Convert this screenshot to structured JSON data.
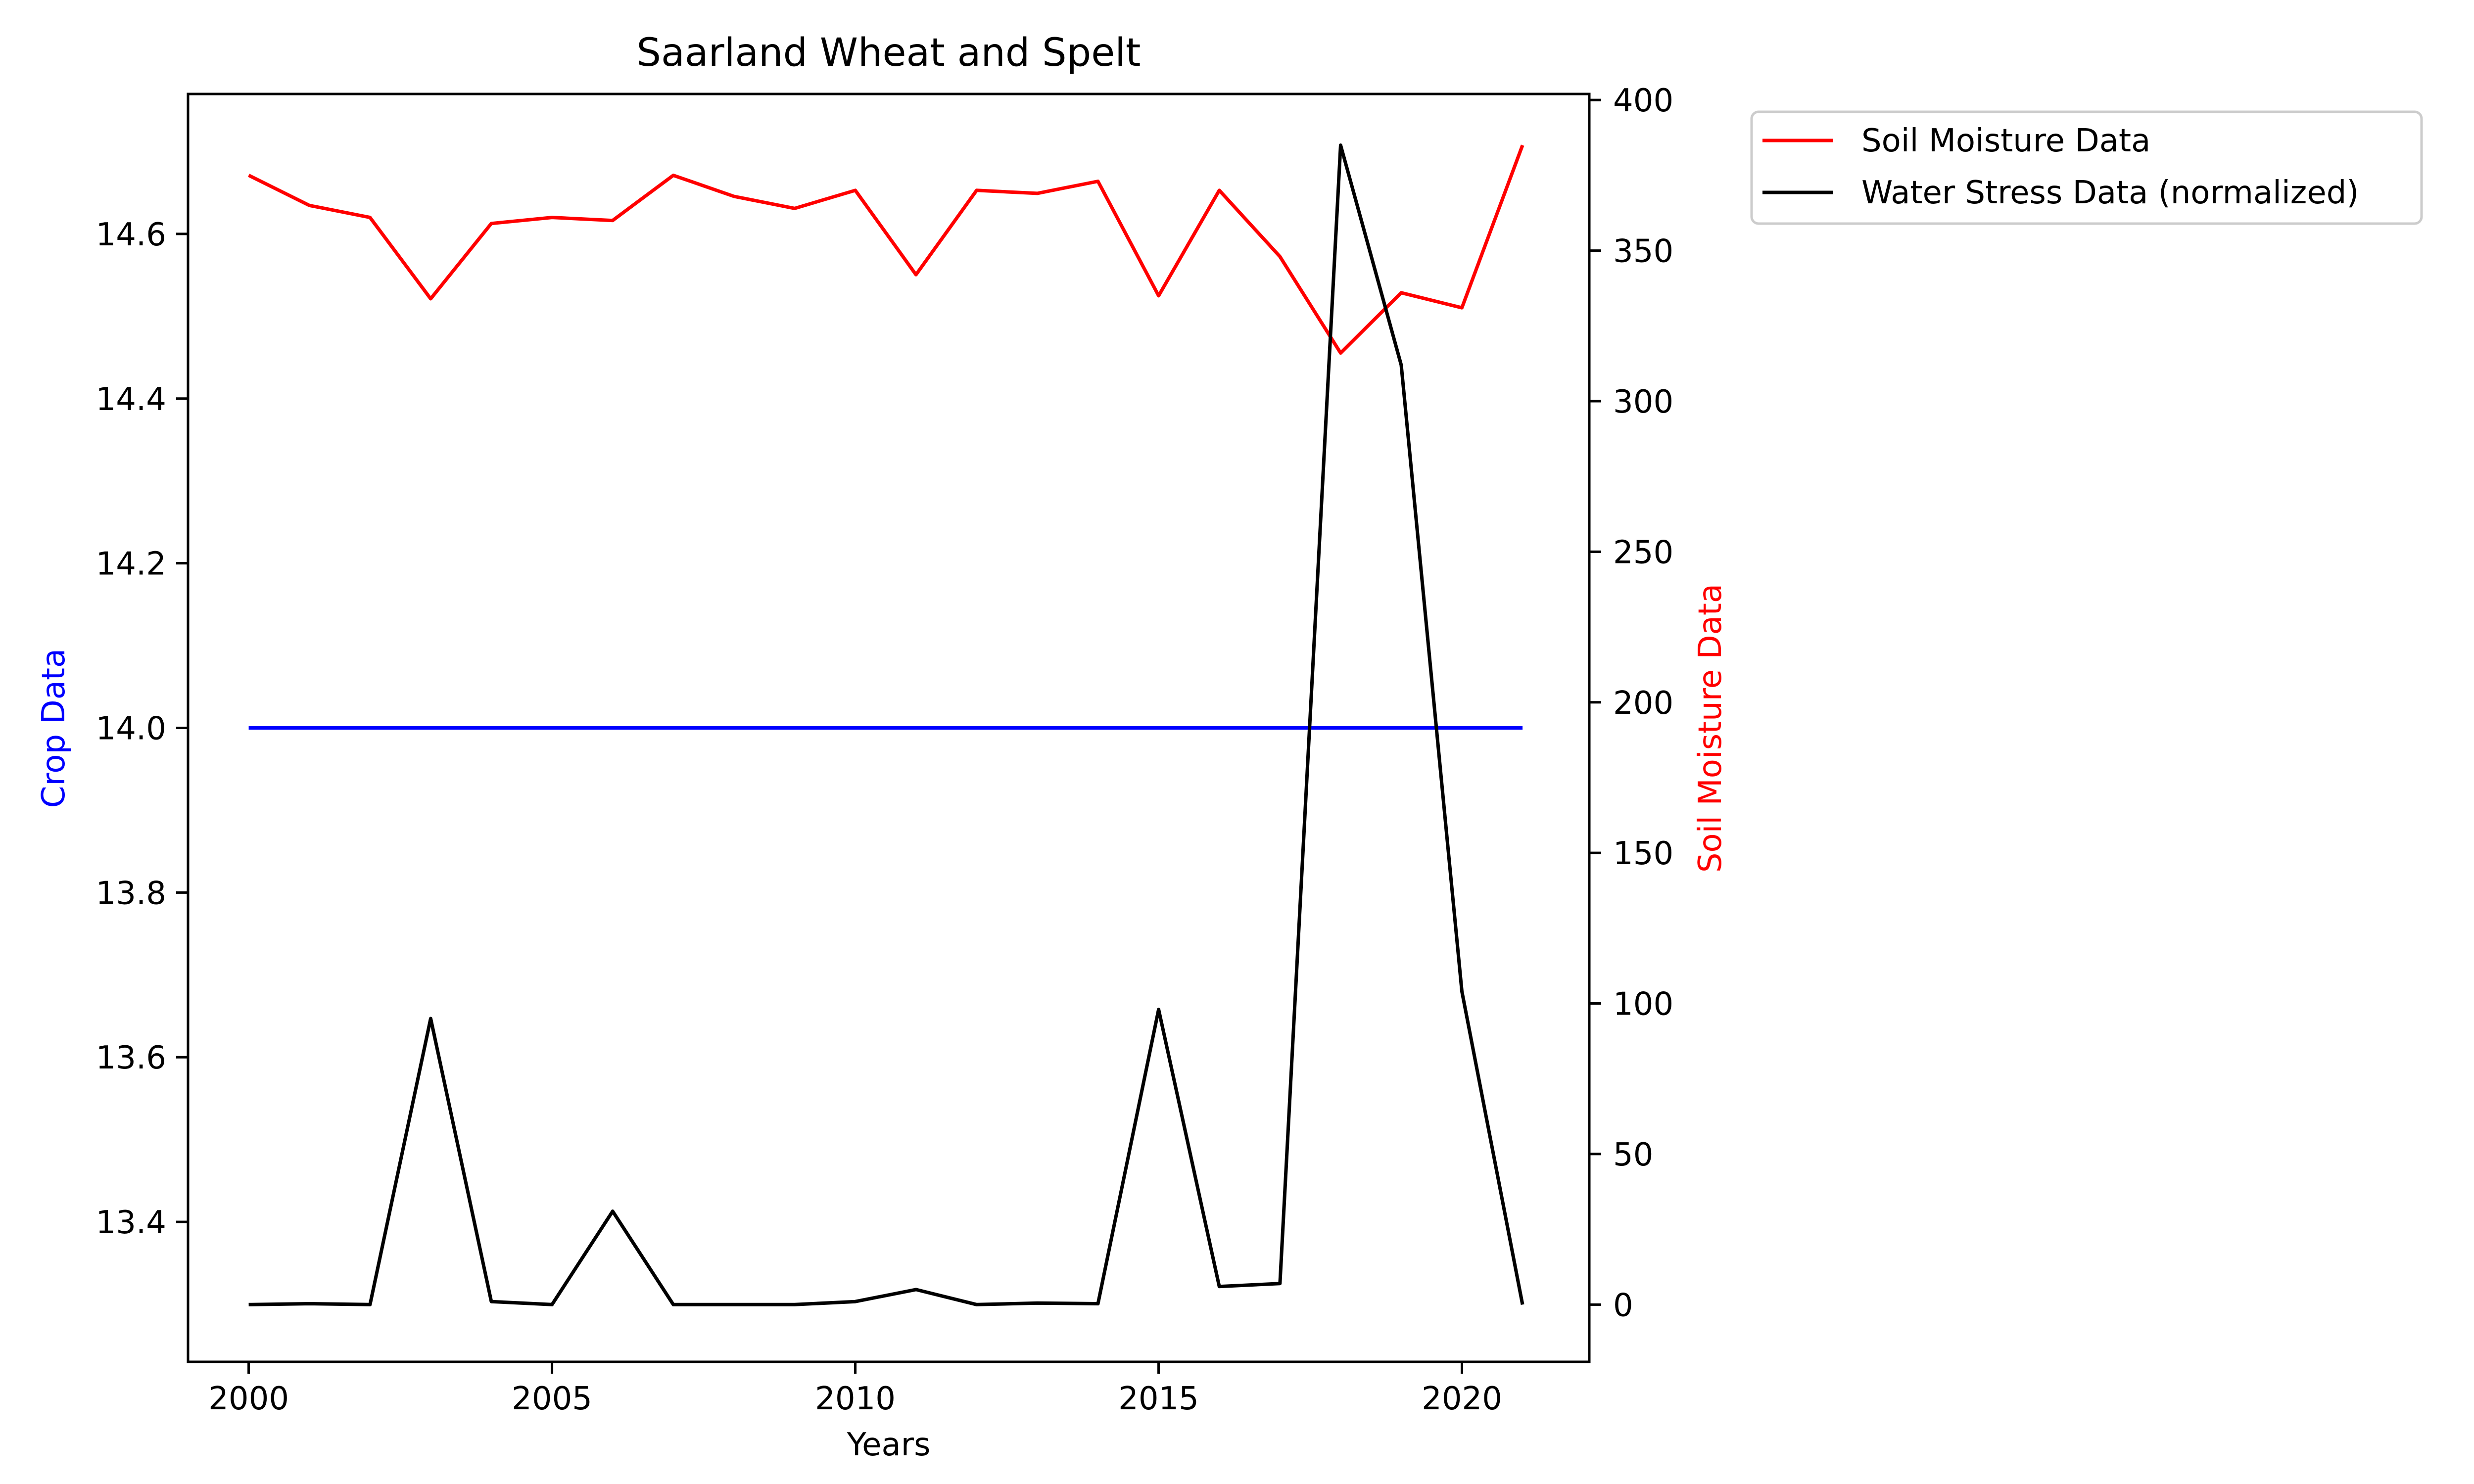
{
  "chart_data": {
    "type": "line",
    "title": "Saarland Wheat and Spelt",
    "xlabel": "Years",
    "ylabel_left": "Crop Data",
    "ylabel_right": "Soil Moisture Data",
    "xlim": [
      1999,
      2022.1
    ],
    "ylim_left": [
      13.23,
      14.77
    ],
    "ylim_right": [
      -19,
      402
    ],
    "x_ticks": [
      2000,
      2005,
      2010,
      2015,
      2020
    ],
    "y_ticks_left": [
      13.4,
      13.6,
      13.8,
      14.0,
      14.2,
      14.4,
      14.6
    ],
    "y_ticks_right": [
      0,
      50,
      100,
      150,
      200,
      250,
      300,
      350,
      400
    ],
    "x": [
      2000,
      2001,
      2002,
      2003,
      2004,
      2005,
      2006,
      2007,
      2008,
      2009,
      2010,
      2011,
      2012,
      2013,
      2014,
      2015,
      2016,
      2017,
      2018,
      2019,
      2020,
      2021
    ],
    "series": [
      {
        "axis": "left",
        "color": "#0000ff",
        "values": [
          14.0,
          14.0,
          14.0,
          14.0,
          14.0,
          14.0,
          14.0,
          14.0,
          14.0,
          14.0,
          14.0,
          14.0,
          14.0,
          14.0,
          14.0,
          14.0,
          14.0,
          14.0,
          14.0,
          14.0,
          14.0,
          14.0
        ]
      },
      {
        "name": "Soil Moisture Data",
        "axis": "right",
        "color": "#ff0000",
        "values": [
          375,
          365,
          361,
          334,
          359,
          361,
          360,
          375,
          368,
          364,
          370,
          342,
          370,
          369,
          373,
          335,
          370,
          348,
          316,
          336,
          331,
          385
        ]
      },
      {
        "name": "Water Stress Data (normalized)",
        "axis": "right",
        "color": "#000000",
        "values": [
          0,
          0.3,
          0,
          95,
          1,
          0,
          31,
          0,
          0,
          0,
          1,
          5,
          0,
          0.5,
          0.3,
          98,
          6,
          7,
          385,
          312,
          104,
          0
        ]
      }
    ],
    "legend": {
      "position": "outside-right-top",
      "entries": [
        "Soil Moisture Data",
        "Water Stress Data (normalized)"
      ]
    },
    "grid": false
  }
}
